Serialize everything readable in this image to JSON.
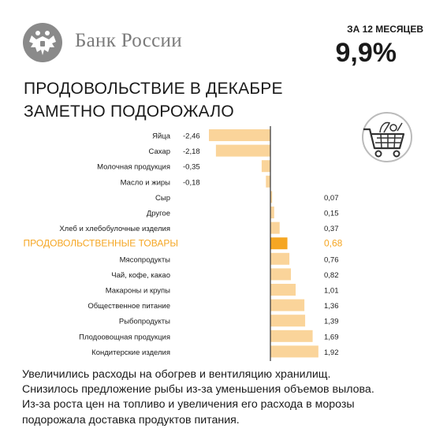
{
  "header": {
    "bank_name": "Банк России",
    "period_label": "ЗА 12 МЕСЯЦЕВ",
    "headline_value": "9,9%",
    "logo_icon": "double-headed-eagle-icon",
    "cart_icon": "shopping-cart-icon"
  },
  "title": {
    "line1": "ПРОДОВОЛЬСТВИЕ В ДЕКАБРЕ",
    "line2": "ЗАМЕТНО ПОДОРОЖАЛО"
  },
  "colors": {
    "bar": "#fad49a",
    "highlight_bar": "#f5a623",
    "highlight_text": "#f5a623",
    "axis": "#333333",
    "text": "#1a1a1a",
    "logo": "#8a8a8a"
  },
  "chart_data": {
    "type": "bar",
    "orientation": "horizontal",
    "categories": [
      "Яйца",
      "Сахар",
      "Молочная продукция",
      "Масло и жиры",
      "Сыр",
      "Другое",
      "Хлеб и хлебобулочные изделия",
      "ПРОДОВОЛЬСТВЕННЫЕ ТОВАРЫ",
      "Мясопродукты",
      "Чай, кофе, какао",
      "Макароны и крупы",
      "Общественное питание",
      "Рыбопродукты",
      "Плодоовощная продукция",
      "Кондитерские изделия"
    ],
    "values": [
      -2.46,
      -2.18,
      -0.35,
      -0.18,
      0.07,
      0.15,
      0.37,
      0.68,
      0.76,
      0.82,
      1.01,
      1.36,
      1.39,
      1.69,
      1.92
    ],
    "value_labels": [
      "-2,46",
      "-2,18",
      "-0,35",
      "-0,18",
      "0,07",
      "0,15",
      "0,37",
      "0,68",
      "0,76",
      "0,82",
      "1,01",
      "1,36",
      "1,39",
      "1,69",
      "1,92"
    ],
    "highlight_index": 7,
    "xlim": [
      -2.8,
      2.1
    ],
    "grid": false,
    "title": "",
    "xlabel": "",
    "ylabel": ""
  },
  "notes": [
    "Увеличились  расходы на обогрев и вентиляцию  хранилищ.",
    "Снизилось  предложение  рыбы из-за  уменьшения  объемов вылова.",
    "Из-за роста цен на топливо  и увеличения   его расхода в морозы",
    "подорожала доставка продуктов питания."
  ]
}
